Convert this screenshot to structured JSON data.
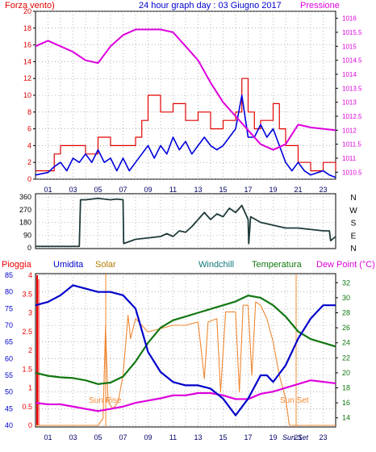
{
  "colors": {
    "wind": "#e00000",
    "gust": "#0000dd",
    "pressure": "#dd00dd",
    "direction": "#1f3a3a",
    "humidity": "#0000cc",
    "solar": "#ee8833",
    "windchill": "#117711",
    "temperature": "#117711",
    "dewpoint": "#dd00dd",
    "rain": "#ee0000",
    "grid": "#888888"
  },
  "chart_data": [
    {
      "type": "line",
      "title": "24 hour graph day : 03 Giugno 2017",
      "left_axis_label": "Forza vento)",
      "right_axis_label": "Pressione",
      "x_ticks": [
        "01",
        "03",
        "05",
        "07",
        "09",
        "11",
        "13",
        "15",
        "17",
        "19",
        "21",
        "23"
      ],
      "x_range": [
        0,
        24
      ],
      "y_left_range": [
        0,
        20
      ],
      "y_left_ticks": [
        "0",
        "2",
        "4",
        "6",
        "8",
        "10",
        "12",
        "14",
        "16",
        "18",
        "20"
      ],
      "y_right_range": [
        1010.25,
        1016.25
      ],
      "y_right_ticks": [
        "1010.5",
        "1011",
        "1011.5",
        "1012",
        "1012.5",
        "1013",
        "1013.5",
        "1014",
        "1014.5",
        "1015",
        "1015.5",
        "1016"
      ],
      "series": [
        {
          "key": "wind",
          "axis": "left",
          "points": [
            [
              0,
              1
            ],
            [
              1,
              1
            ],
            [
              1.5,
              3
            ],
            [
              2,
              4
            ],
            [
              3,
              4
            ],
            [
              4,
              3
            ],
            [
              5,
              5
            ],
            [
              6,
              4
            ],
            [
              7,
              4
            ],
            [
              8,
              5
            ],
            [
              8.5,
              7
            ],
            [
              9,
              10
            ],
            [
              10,
              8
            ],
            [
              11,
              9
            ],
            [
              12,
              7
            ],
            [
              13,
              8
            ],
            [
              14,
              6
            ],
            [
              15,
              7
            ],
            [
              16,
              8
            ],
            [
              16.5,
              12
            ],
            [
              17,
              8
            ],
            [
              17.5,
              6
            ],
            [
              18,
              7
            ],
            [
              19,
              9
            ],
            [
              19.5,
              6
            ],
            [
              20,
              4
            ],
            [
              21,
              2
            ],
            [
              22,
              1
            ],
            [
              23,
              2
            ],
            [
              24,
              1
            ]
          ]
        },
        {
          "key": "gust",
          "axis": "left",
          "points": [
            [
              0,
              0.5
            ],
            [
              1,
              0.8
            ],
            [
              1.5,
              1.5
            ],
            [
              2,
              2
            ],
            [
              2.5,
              1
            ],
            [
              3,
              2.5
            ],
            [
              3.5,
              2
            ],
            [
              4,
              3
            ],
            [
              4.5,
              2
            ],
            [
              5,
              3.5
            ],
            [
              5.5,
              2
            ],
            [
              6,
              2.5
            ],
            [
              6.5,
              1
            ],
            [
              7,
              2.5
            ],
            [
              7.5,
              1
            ],
            [
              8,
              2
            ],
            [
              8.5,
              3
            ],
            [
              9,
              4
            ],
            [
              9.5,
              2.5
            ],
            [
              10,
              4
            ],
            [
              10.5,
              3
            ],
            [
              11,
              5
            ],
            [
              11.5,
              3.5
            ],
            [
              12,
              4.5
            ],
            [
              12.5,
              3
            ],
            [
              13,
              4
            ],
            [
              13.5,
              5
            ],
            [
              14,
              4
            ],
            [
              14.5,
              3.5
            ],
            [
              15,
              4
            ],
            [
              15.5,
              5
            ],
            [
              16,
              6
            ],
            [
              16.5,
              10
            ],
            [
              17,
              5
            ],
            [
              17.5,
              5
            ],
            [
              18,
              6.5
            ],
            [
              18.5,
              5
            ],
            [
              19,
              6
            ],
            [
              19.5,
              4
            ],
            [
              20,
              2
            ],
            [
              20.5,
              1
            ],
            [
              21,
              2
            ],
            [
              21.5,
              1
            ],
            [
              22,
              0.5
            ],
            [
              23,
              1
            ],
            [
              23.5,
              0.5
            ],
            [
              24,
              0.2
            ]
          ]
        },
        {
          "key": "pressure",
          "axis": "right",
          "points": [
            [
              0,
              1015
            ],
            [
              1,
              1015.2
            ],
            [
              2,
              1015
            ],
            [
              3,
              1014.8
            ],
            [
              4,
              1014.5
            ],
            [
              5,
              1014.4
            ],
            [
              6,
              1015
            ],
            [
              7,
              1015.4
            ],
            [
              8,
              1015.6
            ],
            [
              9,
              1015.6
            ],
            [
              10,
              1015.6
            ],
            [
              11,
              1015.5
            ],
            [
              12,
              1015
            ],
            [
              13,
              1014.5
            ],
            [
              14,
              1013.7
            ],
            [
              15,
              1013
            ],
            [
              16,
              1012.5
            ],
            [
              17,
              1012
            ],
            [
              18,
              1011.5
            ],
            [
              19,
              1011.3
            ],
            [
              20,
              1011.5
            ],
            [
              21,
              1012.2
            ],
            [
              22,
              1012.1
            ],
            [
              23,
              1012.05
            ],
            [
              24,
              1012
            ]
          ]
        }
      ]
    },
    {
      "type": "line",
      "y_range": [
        0,
        360
      ],
      "y_ticks": [
        "0",
        "90",
        "180",
        "270",
        "360"
      ],
      "compass_labels": [
        "N",
        "W",
        "S",
        "E",
        "N"
      ],
      "series": [
        {
          "key": "direction",
          "points": [
            [
              0,
              10
            ],
            [
              3.5,
              10
            ],
            [
              3.6,
              340
            ],
            [
              4,
              340
            ],
            [
              5,
              350
            ],
            [
              6,
              340
            ],
            [
              6.5,
              345
            ],
            [
              7,
              340
            ],
            [
              7.05,
              30
            ],
            [
              8,
              60
            ],
            [
              9,
              70
            ],
            [
              10,
              80
            ],
            [
              10.5,
              100
            ],
            [
              11,
              80
            ],
            [
              11.5,
              120
            ],
            [
              12,
              110
            ],
            [
              12.5,
              150
            ],
            [
              13,
              200
            ],
            [
              13.5,
              250
            ],
            [
              14,
              200
            ],
            [
              14.5,
              240
            ],
            [
              15,
              220
            ],
            [
              15.5,
              280
            ],
            [
              16,
              250
            ],
            [
              16.5,
              300
            ],
            [
              17,
              200
            ],
            [
              17.05,
              30
            ],
            [
              17.2,
              220
            ],
            [
              18,
              180
            ],
            [
              19,
              160
            ],
            [
              20,
              140
            ],
            [
              21,
              140
            ],
            [
              22,
              130
            ],
            [
              23,
              120
            ],
            [
              23.5,
              120
            ],
            [
              23.6,
              50
            ],
            [
              24,
              80
            ]
          ]
        }
      ]
    },
    {
      "type": "line",
      "legend": [
        "Pioggia",
        "Umidita",
        "Solar",
        "Windchill",
        "Temperatura",
        "Dew Point (°C)"
      ],
      "x_ticks": [
        "01",
        "03",
        "05",
        "07",
        "09",
        "11",
        "13",
        "15",
        "17",
        "19",
        "21",
        "23"
      ],
      "y_left_ticks": [
        "40",
        "45",
        "50",
        "55",
        "60",
        "65",
        "70",
        "75",
        "80",
        "85"
      ],
      "y_left_range": [
        40,
        85
      ],
      "y_rain_ticks": [
        "0",
        "0.5",
        "1",
        "1.5",
        "2",
        "2.5",
        "3",
        "3.5",
        "4"
      ],
      "y_right_ticks": [
        "14",
        "16",
        "18",
        "20",
        "22",
        "24",
        "26",
        "28",
        "30",
        "32"
      ],
      "y_right_range": [
        13,
        33
      ],
      "annotations": [
        "Sun Rise",
        "Sun Set",
        "Sun Set"
      ],
      "series": [
        {
          "key": "humidity",
          "axis": "left",
          "points": [
            [
              0,
              76
            ],
            [
              1,
              77
            ],
            [
              2,
              79
            ],
            [
              3,
              82
            ],
            [
              4,
              81
            ],
            [
              5,
              80
            ],
            [
              6,
              80
            ],
            [
              7,
              79
            ],
            [
              8,
              75
            ],
            [
              9,
              62
            ],
            [
              10,
              56
            ],
            [
              11,
              53
            ],
            [
              12,
              52
            ],
            [
              13,
              52
            ],
            [
              14,
              51
            ],
            [
              15,
              48
            ],
            [
              16,
              43
            ],
            [
              17,
              48
            ],
            [
              18,
              55
            ],
            [
              18.5,
              55
            ],
            [
              19,
              53
            ],
            [
              20,
              58
            ],
            [
              21,
              66
            ],
            [
              22,
              72
            ],
            [
              23,
              76
            ],
            [
              24,
              76
            ]
          ]
        },
        {
          "key": "temperature",
          "axis": "right",
          "points": [
            [
              0,
              20
            ],
            [
              1,
              19.6
            ],
            [
              2,
              19.4
            ],
            [
              3,
              19.3
            ],
            [
              4,
              19
            ],
            [
              5,
              18.5
            ],
            [
              6,
              18.7
            ],
            [
              7,
              19.5
            ],
            [
              8,
              21.5
            ],
            [
              9,
              24
            ],
            [
              10,
              26
            ],
            [
              11,
              27
            ],
            [
              12,
              27.5
            ],
            [
              13,
              28
            ],
            [
              14,
              28.5
            ],
            [
              15,
              29
            ],
            [
              16,
              29.5
            ],
            [
              17,
              30.3
            ],
            [
              18,
              30
            ],
            [
              19,
              29
            ],
            [
              20,
              27.5
            ],
            [
              21,
              25.5
            ],
            [
              22,
              24.5
            ],
            [
              23,
              24
            ],
            [
              24,
              23.5
            ]
          ]
        },
        {
          "key": "dewpoint",
          "axis": "right",
          "points": [
            [
              0,
              16
            ],
            [
              1,
              15.8
            ],
            [
              2,
              15.8
            ],
            [
              3,
              15.5
            ],
            [
              4,
              15.2
            ],
            [
              5,
              14.9
            ],
            [
              6,
              15.2
            ],
            [
              7,
              15.5
            ],
            [
              8,
              16
            ],
            [
              9,
              16.3
            ],
            [
              10,
              16.6
            ],
            [
              11,
              17
            ],
            [
              12,
              17
            ],
            [
              13,
              17.3
            ],
            [
              14,
              17.3
            ],
            [
              15,
              17
            ],
            [
              16,
              16.5
            ],
            [
              17,
              16.5
            ],
            [
              18,
              17.2
            ],
            [
              19,
              17.5
            ],
            [
              20,
              18
            ],
            [
              21,
              18.5
            ],
            [
              22,
              19
            ],
            [
              23,
              18.8
            ],
            [
              24,
              18.6
            ]
          ]
        },
        {
          "key": "solar",
          "axis": "left",
          "points": [
            [
              0,
              40
            ],
            [
              5,
              40
            ],
            [
              5.4,
              42
            ],
            [
              5.6,
              70
            ],
            [
              5.8,
              47
            ],
            [
              6.2,
              45
            ],
            [
              6.6,
              47
            ],
            [
              7,
              55
            ],
            [
              7.4,
              73
            ],
            [
              7.6,
              66
            ],
            [
              8,
              72
            ],
            [
              9,
              68
            ],
            [
              10,
              69
            ],
            [
              11,
              70
            ],
            [
              12,
              70
            ],
            [
              13,
              71
            ],
            [
              13.5,
              54
            ],
            [
              13.8,
              71
            ],
            [
              14.5,
              72
            ],
            [
              14.8,
              50
            ],
            [
              15.2,
              74
            ],
            [
              16,
              74
            ],
            [
              16.3,
              50
            ],
            [
              16.6,
              76
            ],
            [
              17,
              76
            ],
            [
              17.3,
              55
            ],
            [
              17.6,
              77
            ],
            [
              18,
              76
            ],
            [
              18.5,
              72
            ],
            [
              19,
              65
            ],
            [
              19.5,
              55
            ],
            [
              20,
              48
            ],
            [
              20.3,
              40
            ],
            [
              24,
              40
            ]
          ]
        }
      ]
    }
  ]
}
